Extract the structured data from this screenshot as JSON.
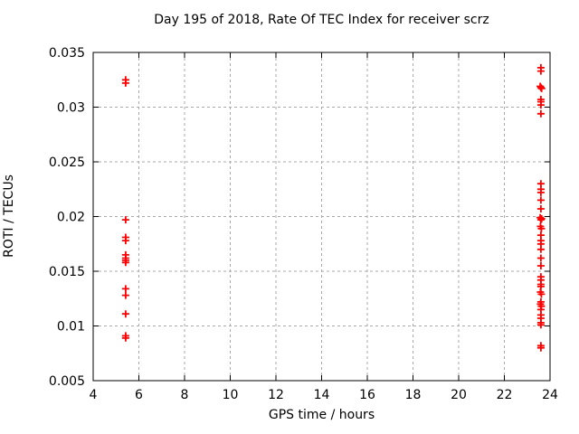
{
  "chart_data": {
    "type": "scatter",
    "title": "Day 195 of 2018, Rate Of TEC Index for receiver scrz",
    "xlabel": "GPS time / hours",
    "ylabel": "ROTI / TECUs",
    "xlim": [
      4,
      24
    ],
    "ylim": [
      0.005,
      0.035
    ],
    "xticks": [
      4,
      6,
      8,
      10,
      12,
      14,
      16,
      18,
      20,
      22,
      24
    ],
    "yticks": [
      0.005,
      0.01,
      0.015,
      0.02,
      0.025,
      0.03,
      0.035
    ],
    "ytick_labels": [
      "0.005",
      "0.01",
      "0.015",
      "0.02",
      "0.025",
      "0.03",
      "0.035"
    ],
    "grid": true,
    "legend": "none",
    "marker": "plus",
    "marker_color": "#ff0000",
    "grid_color": "#aaaaaa",
    "axis_color": "#000000",
    "series": [
      {
        "name": "ROTI",
        "points": [
          [
            5.42,
            0.0325
          ],
          [
            5.42,
            0.0322
          ],
          [
            5.42,
            0.0197
          ],
          [
            5.42,
            0.0181
          ],
          [
            5.42,
            0.0178
          ],
          [
            5.42,
            0.0165
          ],
          [
            5.42,
            0.0162
          ],
          [
            5.42,
            0.016
          ],
          [
            5.42,
            0.0158
          ],
          [
            5.42,
            0.0134
          ],
          [
            5.42,
            0.0128
          ],
          [
            5.42,
            0.0111
          ],
          [
            5.42,
            0.0091
          ],
          [
            5.42,
            0.0089
          ],
          [
            23.6,
            0.0336
          ],
          [
            23.6,
            0.0333
          ],
          [
            23.57,
            0.0319
          ],
          [
            23.6,
            0.0318
          ],
          [
            23.63,
            0.0317
          ],
          [
            23.6,
            0.0307
          ],
          [
            23.6,
            0.0305
          ],
          [
            23.6,
            0.0302
          ],
          [
            23.6,
            0.0294
          ],
          [
            23.6,
            0.023
          ],
          [
            23.6,
            0.0225
          ],
          [
            23.6,
            0.0222
          ],
          [
            23.6,
            0.0215
          ],
          [
            23.6,
            0.0207
          ],
          [
            23.57,
            0.0199
          ],
          [
            23.63,
            0.0198
          ],
          [
            23.6,
            0.0197
          ],
          [
            23.58,
            0.0191
          ],
          [
            23.62,
            0.0189
          ],
          [
            23.6,
            0.0183
          ],
          [
            23.6,
            0.0178
          ],
          [
            23.6,
            0.0175
          ],
          [
            23.6,
            0.017
          ],
          [
            23.6,
            0.0162
          ],
          [
            23.6,
            0.0155
          ],
          [
            23.6,
            0.0145
          ],
          [
            23.6,
            0.0142
          ],
          [
            23.6,
            0.0138
          ],
          [
            23.6,
            0.0136
          ],
          [
            23.58,
            0.0131
          ],
          [
            23.62,
            0.0129
          ],
          [
            23.6,
            0.0122
          ],
          [
            23.58,
            0.012
          ],
          [
            23.62,
            0.0118
          ],
          [
            23.6,
            0.0115
          ],
          [
            23.6,
            0.011
          ],
          [
            23.6,
            0.0107
          ],
          [
            23.6,
            0.0103
          ],
          [
            23.6,
            0.0101
          ],
          [
            23.6,
            0.0082
          ],
          [
            23.6,
            0.008
          ]
        ]
      }
    ]
  }
}
